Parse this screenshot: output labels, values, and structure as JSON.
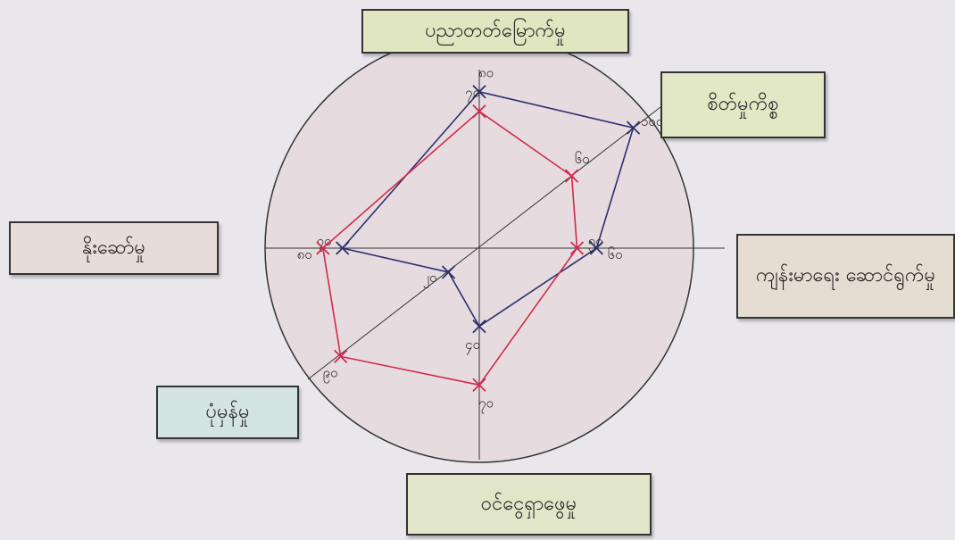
{
  "chart_data": {
    "type": "radar",
    "axes": [
      "ပညာတတ်မြောက်မှု",
      "စိတ်မှုကိစ္စ",
      "ကျန်းမာရေး ဆောင်ရွက်မှု",
      "ဝင်ငွေရှာဖွေမှု",
      "ပုံမှန်မှု",
      "နိုးဆော်မှု"
    ],
    "rlim": [
      0,
      100
    ],
    "series": [
      {
        "color": "#2e2f6e",
        "values": [
          80,
          100,
          60,
          40,
          20,
          70
        ],
        "value_labels": [
          "၈၀",
          "၁၀၀",
          "၆၀",
          "၄၀",
          "၂၀",
          "၇၀"
        ]
      },
      {
        "color": "#d3294c",
        "values": [
          70,
          60,
          50,
          70,
          90,
          80
        ],
        "value_labels": [
          "၇၀",
          "၆၀",
          "၅၀",
          "၇၀",
          "၉၀",
          "၈၀"
        ]
      }
    ]
  }
}
